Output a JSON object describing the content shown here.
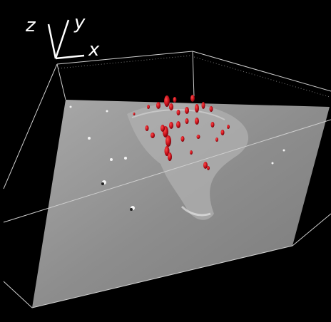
{
  "axis_labels": {
    "z": "z",
    "y": "y",
    "x": "x"
  }
}
